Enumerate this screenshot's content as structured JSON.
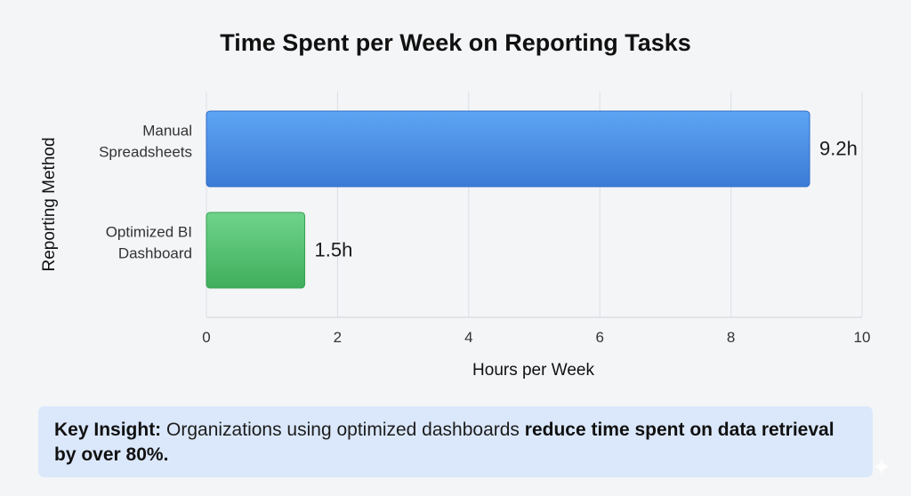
{
  "chart_data": {
    "type": "bar",
    "orientation": "horizontal",
    "title": "Time Spent per Week on Reporting Tasks",
    "xlabel": "Hours per Week",
    "ylabel": "Reporting Method",
    "xlim": [
      0,
      10
    ],
    "xticks": [
      0,
      2,
      4,
      6,
      8,
      10
    ],
    "grid": true,
    "categories": [
      [
        "Manual",
        "Spreadsheets"
      ],
      [
        "Optimized BI",
        "Dashboard"
      ]
    ],
    "values": [
      9.2,
      1.5
    ],
    "data_labels": [
      "9.2h",
      "1.5h"
    ],
    "colors": [
      "#4a90e2",
      "#4cc06b"
    ]
  },
  "insight": {
    "label": "Key Insight:",
    "text_before": " Organizations using optimized dashboards ",
    "emphasis": "reduce time spent on data retrieval by over 80%."
  },
  "icons": {
    "corner": "sparkle-icon"
  }
}
